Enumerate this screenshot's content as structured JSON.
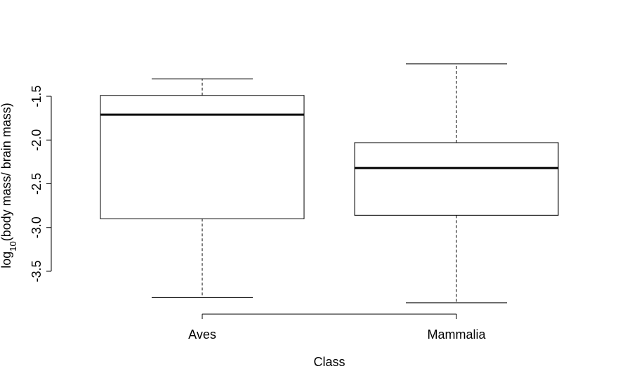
{
  "chart_data": {
    "type": "boxplot",
    "title": "",
    "xlabel": "Class",
    "ylabel_prefix": "log",
    "ylabel_sub": "10",
    "ylabel_rest": "(body mass/ brain mass)",
    "yticks": [
      -1.5,
      -2.0,
      -2.5,
      -3.0,
      -3.5
    ],
    "ytick_labels": [
      "-1.5",
      "-2.0",
      "-2.5",
      "-3.0",
      "-3.5"
    ],
    "ylim": [
      -4.0,
      -1.1
    ],
    "categories": [
      "Aves",
      "Mammalia"
    ],
    "boxes": [
      {
        "name": "Aves",
        "min": -3.8,
        "q1": -2.9,
        "median": -1.71,
        "q3": -1.49,
        "max": -1.3
      },
      {
        "name": "Mammalia",
        "min": -3.86,
        "q1": -2.86,
        "median": -2.32,
        "q3": -2.03,
        "max": -1.13
      }
    ]
  }
}
